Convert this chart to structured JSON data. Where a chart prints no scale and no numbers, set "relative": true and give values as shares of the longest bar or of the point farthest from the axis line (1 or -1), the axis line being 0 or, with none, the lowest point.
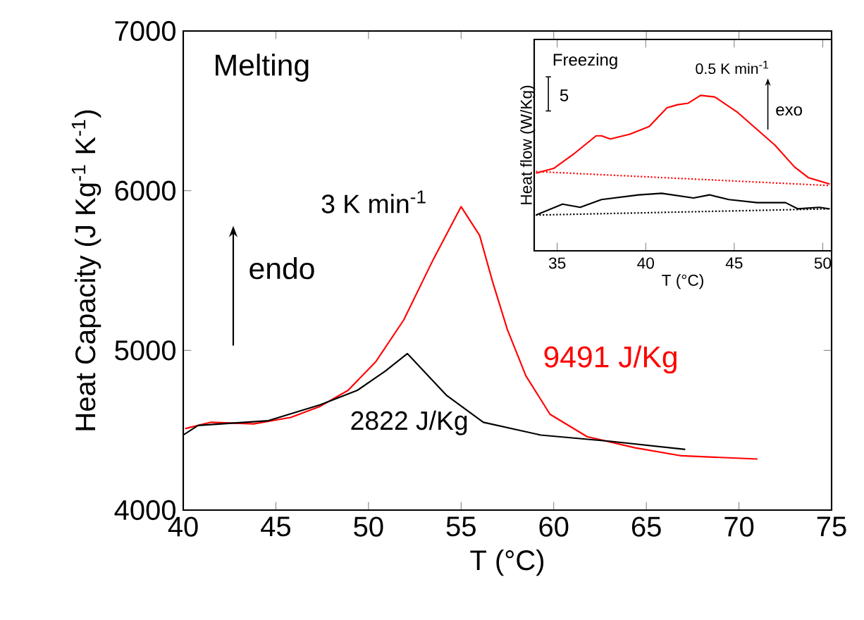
{
  "chart_data": [
    {
      "type": "line",
      "xlabel": "T (°C)",
      "ylabel": "Heat Capacity (J Kg$^{-1}$ K$^{-1}$)",
      "xlim": [
        40,
        75
      ],
      "ylim": [
        4000,
        7000
      ],
      "xticks": [
        40,
        45,
        50,
        55,
        60,
        65,
        70,
        75
      ],
      "yticks": [
        4000,
        5000,
        6000,
        7000
      ],
      "annotations": [
        "Melting",
        "3 K min$^{-1}$",
        "endo",
        "9491 J/Kg",
        "2822 J/Kg"
      ],
      "series": [
        {
          "color": "#ff0000",
          "line_style": "solid",
          "x": [
            40.1,
            41.5,
            43.8,
            45.8,
            47.4,
            48.9,
            50.4,
            51.9,
            53.5,
            55.0,
            56.0,
            56.7,
            57.5,
            58.5,
            59.8,
            61.8,
            64.4,
            66.9,
            71.0
          ],
          "values": [
            4510,
            4550,
            4540,
            4580,
            4650,
            4750,
            4930,
            5190,
            5570,
            5900,
            5720,
            5430,
            5130,
            4840,
            4600,
            4460,
            4390,
            4340,
            4320
          ]
        },
        {
          "color": "#000000",
          "line_style": "solid",
          "x": [
            40.0,
            40.8,
            44.6,
            47.4,
            49.4,
            50.9,
            52.1,
            54.2,
            56.2,
            59.3,
            63.1,
            67.1
          ],
          "values": [
            4470,
            4530,
            4560,
            4660,
            4750,
            4870,
            4980,
            4720,
            4550,
            4470,
            4430,
            4380
          ]
        }
      ]
    },
    {
      "type": "line",
      "relative": true,
      "xlabel": "T (°C)",
      "ylabel": "Heat flow (W/Kg)",
      "xlim": [
        33.7,
        50.5
      ],
      "xticks": [
        35,
        40,
        45,
        50
      ],
      "annotations": [
        "Freezing",
        "5",
        "0.5 K min$^{-1}$",
        "exo"
      ],
      "series": [
        {
          "color": "#ff0000",
          "line_style": "solid",
          "x": [
            33.8,
            34.8,
            35.9,
            37.2,
            37.5,
            38.0,
            39.1,
            40.2,
            41.2,
            41.8,
            42.4,
            43.1,
            43.9,
            45.2,
            46.3,
            47.3,
            48.4,
            49.2,
            50.4
          ],
          "values": [
            0.5,
            0.53,
            0.62,
            0.74,
            0.74,
            0.72,
            0.75,
            0.8,
            0.92,
            0.94,
            0.95,
            1.0,
            0.99,
            0.89,
            0.78,
            0.68,
            0.54,
            0.47,
            0.43
          ]
        },
        {
          "color": "#ff0000",
          "line_style": "dotted",
          "x": [
            33.8,
            50.4
          ],
          "values": [
            0.51,
            0.42
          ]
        },
        {
          "color": "#000000",
          "line_style": "solid",
          "x": [
            33.8,
            35.3,
            36.3,
            37.5,
            39.6,
            40.9,
            42.7,
            43.6,
            44.7,
            46.3,
            47.9,
            48.6,
            49.8,
            50.4
          ],
          "values": [
            0.23,
            0.3,
            0.28,
            0.33,
            0.36,
            0.37,
            0.34,
            0.36,
            0.33,
            0.31,
            0.31,
            0.27,
            0.28,
            0.27
          ]
        },
        {
          "color": "#000000",
          "line_style": "dotted",
          "x": [
            33.8,
            50.4
          ],
          "values": [
            0.23,
            0.27
          ]
        }
      ]
    }
  ]
}
